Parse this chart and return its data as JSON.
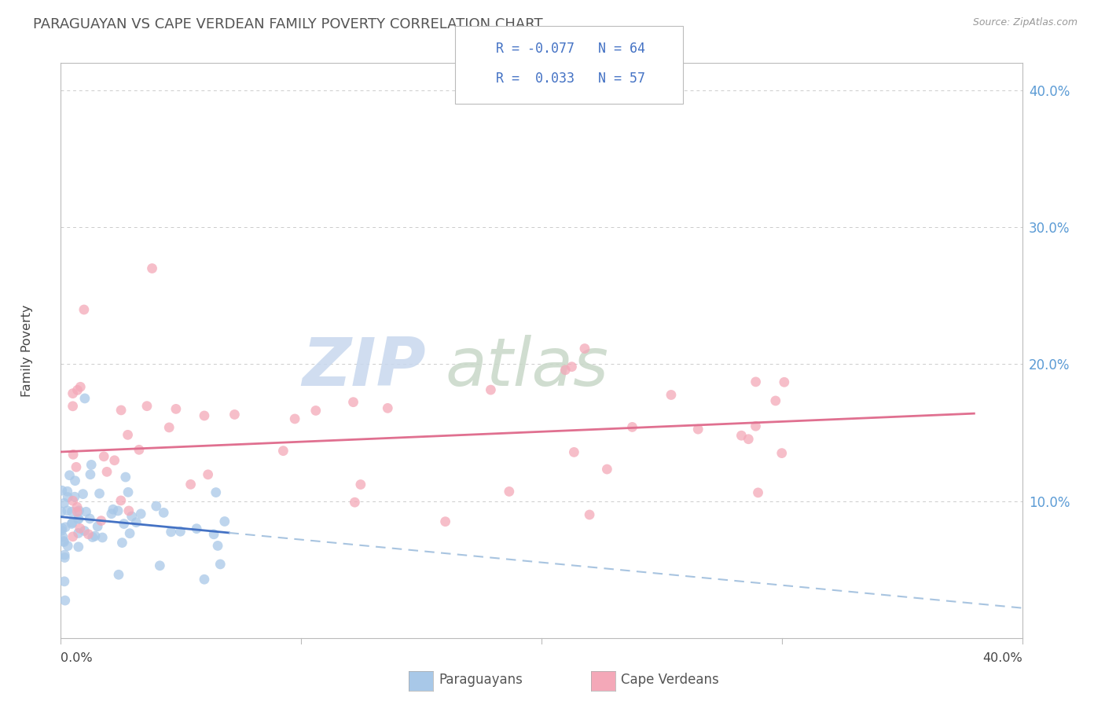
{
  "title": "PARAGUAYAN VS CAPE VERDEAN FAMILY POVERTY CORRELATION CHART",
  "source": "Source: ZipAtlas.com",
  "ylabel": "Family Poverty",
  "paraguayan_R": -0.077,
  "paraguayan_N": 64,
  "capeverdean_R": 0.033,
  "capeverdean_N": 57,
  "paraguayan_color": "#a8c8e8",
  "capeverdean_color": "#f4a8b8",
  "paraguayan_line_color": "#4472c4",
  "capeverdean_line_color": "#e07090",
  "trend_line_dashed_color": "#a8c4e0",
  "background_color": "#ffffff",
  "plot_bg_color": "#ffffff",
  "grid_color": "#cccccc",
  "right_axis_color": "#5b9bd5",
  "xlim": [
    0.0,
    0.4
  ],
  "ylim": [
    0.0,
    0.42
  ],
  "watermark_zip_color": "#c8d8ee",
  "watermark_atlas_color": "#c8d8c8",
  "legend_text_color": "#4472c4",
  "bottom_label_color": "#555555"
}
